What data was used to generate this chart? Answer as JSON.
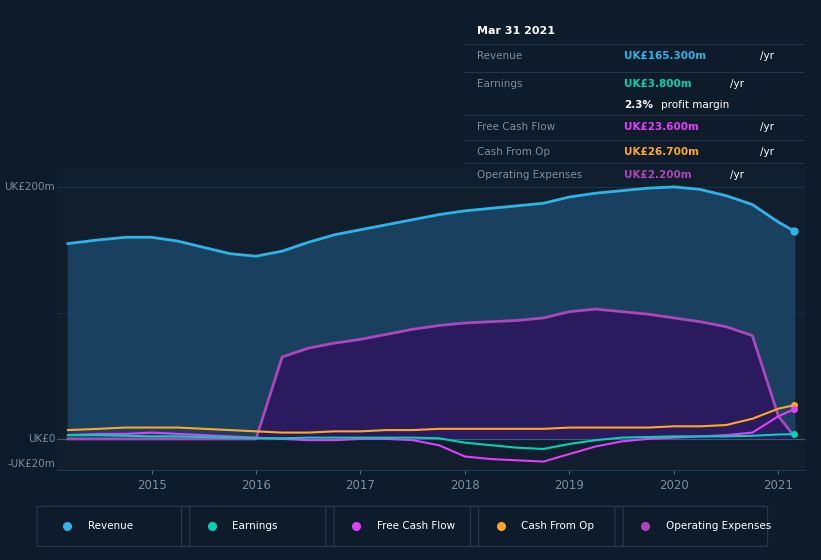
{
  "background_color": "#0d1b2a",
  "plot_bg_color": "#111e2e",
  "years": [
    2014.2,
    2014.5,
    2014.75,
    2015.0,
    2015.25,
    2015.5,
    2015.75,
    2016.0,
    2016.25,
    2016.5,
    2016.75,
    2017.0,
    2017.25,
    2017.5,
    2017.75,
    2018.0,
    2018.25,
    2018.5,
    2018.75,
    2019.0,
    2019.25,
    2019.5,
    2019.75,
    2020.0,
    2020.25,
    2020.5,
    2020.75,
    2021.0,
    2021.15
  ],
  "revenue": [
    155,
    158,
    160,
    160,
    157,
    152,
    147,
    145,
    149,
    156,
    162,
    166,
    170,
    174,
    178,
    181,
    183,
    185,
    187,
    192,
    195,
    197,
    199,
    200,
    198,
    193,
    186,
    172,
    165
  ],
  "earnings": [
    3,
    3,
    2.5,
    2,
    2,
    1.5,
    1,
    0.5,
    0.5,
    1,
    1,
    1,
    1,
    1,
    0.5,
    -3,
    -5,
    -7,
    -8,
    -4,
    -1,
    1,
    1.5,
    2,
    2,
    2,
    2.5,
    3.5,
    3.8
  ],
  "free_cash_flow": [
    3,
    4,
    4,
    5,
    4,
    3,
    2,
    1,
    0,
    -1,
    -1,
    0,
    0,
    -1,
    -5,
    -14,
    -16,
    -17,
    -18,
    -12,
    -6,
    -2,
    0,
    1,
    2,
    3,
    5,
    18,
    23.6
  ],
  "cash_from_op": [
    7,
    8,
    9,
    9,
    9,
    8,
    7,
    6,
    5,
    5,
    6,
    6,
    7,
    7,
    8,
    8,
    8,
    8,
    8,
    9,
    9,
    9,
    9,
    10,
    10,
    11,
    16,
    24,
    26.7
  ],
  "operating_expenses": [
    0,
    0,
    0,
    0,
    0,
    0,
    0,
    0,
    65,
    72,
    76,
    79,
    83,
    87,
    90,
    92,
    93,
    94,
    96,
    101,
    103,
    101,
    99,
    96,
    93,
    89,
    82,
    18,
    2.2
  ],
  "revenue_color": "#2cb5e8",
  "earnings_color": "#00d4b4",
  "free_cash_flow_color": "#e040fb",
  "cash_from_op_color": "#ffa726",
  "operating_expenses_color": "#ab47bc",
  "revenue_fill_color": "#1a4060",
  "operating_expenses_fill_color": "#2a1a5e",
  "grid_color": "#1a3a5a",
  "text_color": "#7a8fa0",
  "white_color": "#ffffff",
  "info_bg": "#080e18",
  "info_border": "#2a3a4a",
  "ylim_min": -25,
  "ylim_max": 215,
  "xlim_min": 2014.1,
  "xlim_max": 2021.25
}
